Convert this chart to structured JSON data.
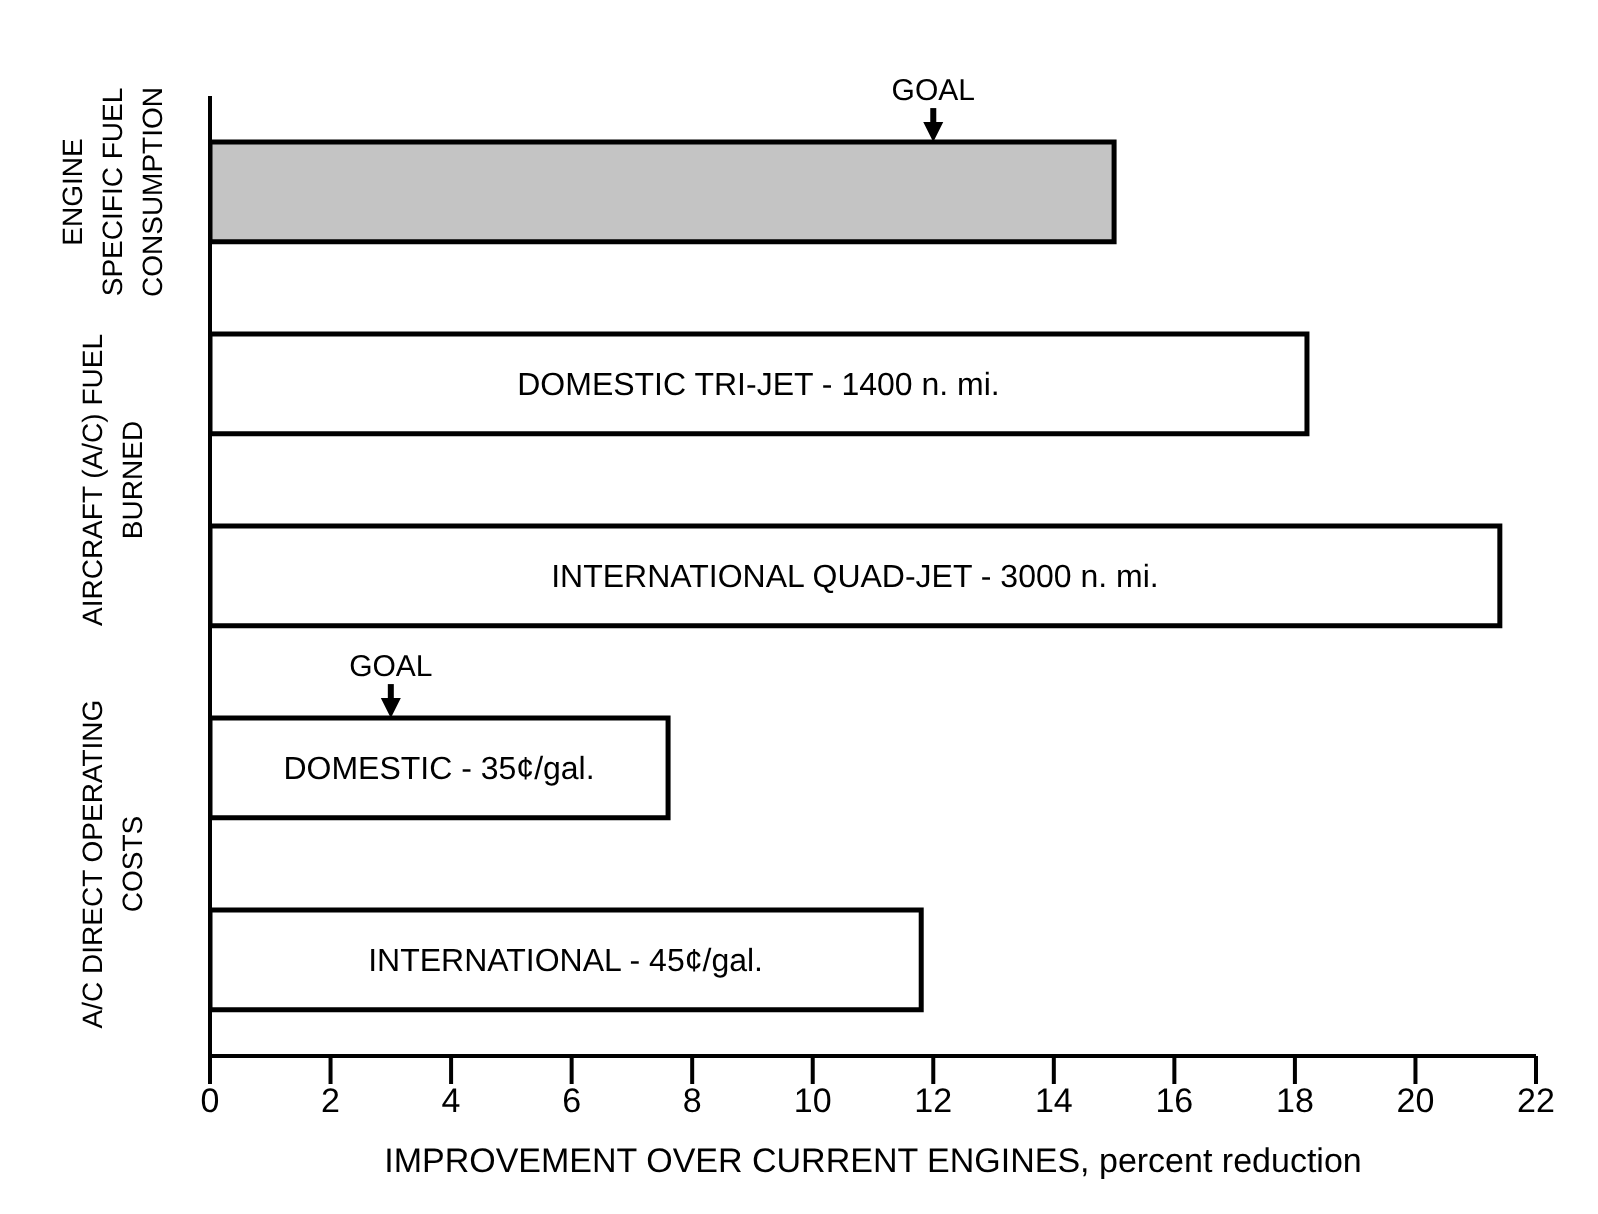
{
  "chart_data": {
    "type": "bar",
    "orientation": "horizontal",
    "categories": [
      null,
      "DOMESTIC TRI-JET - 1400 n. mi.",
      "INTERNATIONAL QUAD-JET - 3000 n. mi.",
      "DOMESTIC - 35¢/gal.",
      "INTERNATIONAL - 45¢/gal."
    ],
    "values": [
      15,
      18.2,
      21.4,
      7.6,
      11.8
    ],
    "colors": [
      "#c4c4c4",
      "#ffffff",
      "#ffffff",
      "#ffffff",
      "#ffffff"
    ],
    "xlabel": "IMPROVEMENT OVER CURRENT ENGINES, percent reduction",
    "xlim": [
      0,
      22
    ],
    "xticks": [
      0,
      2,
      4,
      6,
      8,
      10,
      12,
      14,
      16,
      18,
      20,
      22
    ],
    "tick_labels": "x",
    "grid": false,
    "annotations": [
      "ENGINE SPECIFIC FUEL CONSUMPTION",
      "AIRCRAFT (A/C) FUEL BURNED",
      "A/C DIRECT OPERATING COSTS"
    ],
    "ref_lines": [
      {
        "axis": "x",
        "value": 12,
        "label": "GOAL"
      },
      {
        "axis": "x",
        "value": 3,
        "label": "GOAL"
      }
    ]
  }
}
